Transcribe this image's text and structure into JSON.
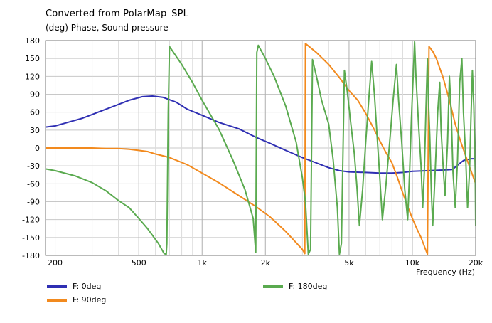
{
  "chart_data": {
    "type": "line",
    "title": "Converted from PolarMap_SPL",
    "subtitle": "(deg)  Phase, Sound pressure",
    "xlabel": "Frequency  (Hz)",
    "xscale": "log",
    "xlim": [
      180,
      20000
    ],
    "ylim": [
      -180,
      180
    ],
    "x_ticks": [
      {
        "v": 200,
        "label": "200"
      },
      {
        "v": 500,
        "label": "500"
      },
      {
        "v": 1000,
        "label": "1k"
      },
      {
        "v": 2000,
        "label": "2k"
      },
      {
        "v": 5000,
        "label": "5k"
      },
      {
        "v": 10000,
        "label": "10k"
      },
      {
        "v": 20000,
        "label": "20k"
      }
    ],
    "x_minor": [
      300,
      400,
      600,
      700,
      800,
      900,
      3000,
      4000,
      6000,
      7000,
      8000,
      9000
    ],
    "y_ticks": [
      180,
      150,
      120,
      90,
      60,
      30,
      0,
      -30,
      -60,
      -90,
      -120,
      -150,
      -180
    ],
    "series": [
      {
        "name": "F: 0deg",
        "color": "#2f2fb3",
        "points": [
          [
            180,
            35
          ],
          [
            200,
            37
          ],
          [
            230,
            43
          ],
          [
            270,
            50
          ],
          [
            320,
            60
          ],
          [
            380,
            70
          ],
          [
            450,
            80
          ],
          [
            520,
            86
          ],
          [
            580,
            87
          ],
          [
            650,
            85
          ],
          [
            750,
            77
          ],
          [
            850,
            65
          ],
          [
            1000,
            55
          ],
          [
            1200,
            43
          ],
          [
            1500,
            32
          ],
          [
            1800,
            18
          ],
          [
            2100,
            8
          ],
          [
            2500,
            -4
          ],
          [
            3000,
            -16
          ],
          [
            3500,
            -25
          ],
          [
            4000,
            -33
          ],
          [
            4500,
            -38
          ],
          [
            5000,
            -40
          ],
          [
            6000,
            -41
          ],
          [
            7000,
            -42
          ],
          [
            8000,
            -42
          ],
          [
            9000,
            -41
          ],
          [
            10000,
            -39
          ],
          [
            12000,
            -38
          ],
          [
            14000,
            -37
          ],
          [
            15500,
            -36
          ],
          [
            16500,
            -28
          ],
          [
            17500,
            -21
          ],
          [
            19000,
            -18
          ],
          [
            20000,
            -18
          ]
        ]
      },
      {
        "name": "F: 90deg",
        "color": "#f28a1e",
        "points": [
          [
            180,
            0
          ],
          [
            250,
            0
          ],
          [
            300,
            0
          ],
          [
            350,
            -1
          ],
          [
            400,
            -1
          ],
          [
            450,
            -2
          ],
          [
            500,
            -4
          ],
          [
            550,
            -6
          ],
          [
            600,
            -10
          ],
          [
            700,
            -16
          ],
          [
            850,
            -28
          ],
          [
            1000,
            -42
          ],
          [
            1200,
            -58
          ],
          [
            1500,
            -80
          ],
          [
            1800,
            -98
          ],
          [
            2100,
            -115
          ],
          [
            2500,
            -140
          ],
          [
            3000,
            -170
          ],
          [
            3080,
            -177
          ],
          [
            3100,
            175
          ],
          [
            3500,
            160
          ],
          [
            4000,
            140
          ],
          [
            4500,
            118
          ],
          [
            5000,
            96
          ],
          [
            5500,
            80
          ],
          [
            6000,
            58
          ],
          [
            6500,
            35
          ],
          [
            7000,
            12
          ],
          [
            7500,
            -8
          ],
          [
            8000,
            -25
          ],
          [
            8500,
            -50
          ],
          [
            9000,
            -75
          ],
          [
            9500,
            -98
          ],
          [
            10000,
            -118
          ],
          [
            10500,
            -135
          ],
          [
            11000,
            -150
          ],
          [
            11500,
            -168
          ],
          [
            11800,
            -178
          ],
          [
            12000,
            170
          ],
          [
            12500,
            162
          ],
          [
            13000,
            150
          ],
          [
            14000,
            118
          ],
          [
            15000,
            80
          ],
          [
            16000,
            40
          ],
          [
            17000,
            10
          ],
          [
            18000,
            -15
          ],
          [
            19000,
            -38
          ],
          [
            20000,
            -60
          ]
        ]
      },
      {
        "name": "F: 180deg",
        "color": "#5aaa4f",
        "points": [
          [
            180,
            -35
          ],
          [
            200,
            -38
          ],
          [
            250,
            -47
          ],
          [
            300,
            -58
          ],
          [
            350,
            -72
          ],
          [
            400,
            -88
          ],
          [
            450,
            -100
          ],
          [
            500,
            -118
          ],
          [
            550,
            -135
          ],
          [
            620,
            -160
          ],
          [
            660,
            -177
          ],
          [
            675,
            -178
          ],
          [
            680,
            -160
          ],
          [
            690,
            60
          ],
          [
            700,
            170
          ],
          [
            800,
            140
          ],
          [
            900,
            110
          ],
          [
            1000,
            80
          ],
          [
            1200,
            32
          ],
          [
            1400,
            -20
          ],
          [
            1600,
            -70
          ],
          [
            1750,
            -118
          ],
          [
            1800,
            -175
          ],
          [
            1820,
            160
          ],
          [
            1850,
            172
          ],
          [
            2000,
            150
          ],
          [
            2200,
            120
          ],
          [
            2500,
            70
          ],
          [
            2800,
            10
          ],
          [
            3000,
            -50
          ],
          [
            3100,
            -90
          ],
          [
            3200,
            -178
          ],
          [
            3280,
            -170
          ],
          [
            3350,
            148
          ],
          [
            3500,
            120
          ],
          [
            3700,
            80
          ],
          [
            4000,
            40
          ],
          [
            4200,
            -20
          ],
          [
            4400,
            -100
          ],
          [
            4500,
            -178
          ],
          [
            4600,
            -160
          ],
          [
            4750,
            130
          ],
          [
            4900,
            95
          ],
          [
            5100,
            40
          ],
          [
            5300,
            -10
          ],
          [
            5450,
            -65
          ],
          [
            5600,
            -130
          ],
          [
            5800,
            -70
          ],
          [
            6000,
            10
          ],
          [
            6200,
            80
          ],
          [
            6400,
            145
          ],
          [
            6600,
            90
          ],
          [
            6800,
            20
          ],
          [
            7000,
            -50
          ],
          [
            7200,
            -120
          ],
          [
            7500,
            -60
          ],
          [
            7800,
            10
          ],
          [
            8100,
            80
          ],
          [
            8400,
            140
          ],
          [
            8600,
            80
          ],
          [
            8900,
            10
          ],
          [
            9200,
            -70
          ],
          [
            9500,
            -120
          ],
          [
            9700,
            -40
          ],
          [
            9900,
            50
          ],
          [
            10100,
            125
          ],
          [
            10250,
            178
          ],
          [
            10400,
            120
          ],
          [
            10700,
            40
          ],
          [
            11000,
            -30
          ],
          [
            11200,
            -100
          ],
          [
            11400,
            -40
          ],
          [
            11600,
            60
          ],
          [
            11800,
            150
          ],
          [
            11900,
            90
          ],
          [
            12100,
            20
          ],
          [
            12300,
            -70
          ],
          [
            12500,
            -130
          ],
          [
            12800,
            -50
          ],
          [
            13200,
            60
          ],
          [
            13500,
            110
          ],
          [
            13700,
            30
          ],
          [
            14000,
            -30
          ],
          [
            14300,
            -80
          ],
          [
            14700,
            10
          ],
          [
            15000,
            120
          ],
          [
            15300,
            60
          ],
          [
            15600,
            -40
          ],
          [
            16000,
            -100
          ],
          [
            16400,
            -20
          ],
          [
            16800,
            110
          ],
          [
            17200,
            150
          ],
          [
            17500,
            60
          ],
          [
            17900,
            -10
          ],
          [
            18300,
            -100
          ],
          [
            18700,
            -40
          ],
          [
            19000,
            50
          ],
          [
            19300,
            130
          ],
          [
            19600,
            70
          ],
          [
            19900,
            -40
          ],
          [
            20000,
            -130
          ]
        ]
      }
    ],
    "legend": {
      "placement": "bottom",
      "entries": [
        "F: 0deg",
        "F: 180deg",
        "F: 90deg"
      ]
    }
  }
}
